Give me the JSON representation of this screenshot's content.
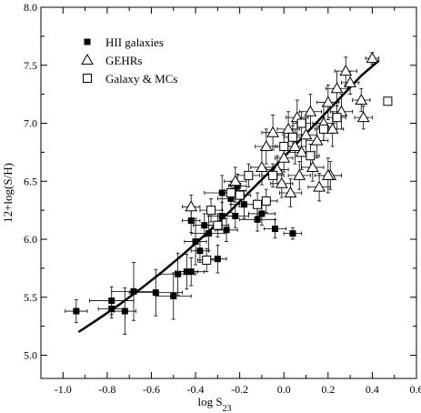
{
  "chart_data": {
    "type": "scatter",
    "title": "",
    "xlabel": "log S",
    "xlabel_sub": "23",
    "ylabel": "12+log(S/H)",
    "xlim": [
      -1.1,
      0.6
    ],
    "ylim": [
      4.8,
      8.0
    ],
    "xticks": [
      "-1.0",
      "-0.8",
      "-0.6",
      "-0.4",
      "-0.2",
      "0.0",
      "0.2",
      "0.4",
      "0.6"
    ],
    "yticks": [
      "5.0",
      "5.5",
      "6.0",
      "6.5",
      "7.0",
      "7.5",
      "8.0"
    ],
    "grid": false,
    "legend_position": "top-left",
    "series": [
      {
        "name": "HII galaxies",
        "marker": "filled-square",
        "color": "#000000",
        "points": [
          {
            "x": -0.94,
            "y": 5.38,
            "xe": 0.05,
            "ye": 0.1
          },
          {
            "x": -0.78,
            "y": 5.47,
            "xe": 0.1,
            "ye": 0.12
          },
          {
            "x": -0.78,
            "y": 5.4,
            "xe": 0.06,
            "ye": 0.08
          },
          {
            "x": -0.72,
            "y": 5.38,
            "xe": 0.05,
            "ye": 0.2
          },
          {
            "x": -0.68,
            "y": 5.55,
            "xe": 0.1,
            "ye": 0.25
          },
          {
            "x": -0.58,
            "y": 5.54,
            "xe": 0.12,
            "ye": 0.2
          },
          {
            "x": -0.5,
            "y": 5.51,
            "xe": 0.08,
            "ye": 0.2
          },
          {
            "x": -0.48,
            "y": 5.7,
            "xe": 0.08,
            "ye": 0.18
          },
          {
            "x": -0.44,
            "y": 5.72,
            "xe": 0.05,
            "ye": 0.15
          },
          {
            "x": -0.42,
            "y": 5.72,
            "xe": 0.06,
            "ye": 0.12
          },
          {
            "x": -0.4,
            "y": 5.98,
            "xe": 0.05,
            "ye": 0.2
          },
          {
            "x": -0.38,
            "y": 5.9,
            "xe": 0.04,
            "ye": 0.1
          },
          {
            "x": -0.42,
            "y": 6.16,
            "xe": 0.04,
            "ye": 0.1
          },
          {
            "x": -0.36,
            "y": 6.12,
            "xe": 0.05,
            "ye": 0.1
          },
          {
            "x": -0.34,
            "y": 6.05,
            "xe": 0.08,
            "ye": 0.15
          },
          {
            "x": -0.3,
            "y": 5.83,
            "xe": 0.04,
            "ye": 0.12
          },
          {
            "x": -0.28,
            "y": 6.2,
            "xe": 0.06,
            "ye": 0.12
          },
          {
            "x": -0.28,
            "y": 6.4,
            "xe": 0.08,
            "ye": 0.15
          },
          {
            "x": -0.26,
            "y": 6.08,
            "xe": 0.05,
            "ye": 0.1
          },
          {
            "x": -0.24,
            "y": 6.35,
            "xe": 0.06,
            "ye": 0.12
          },
          {
            "x": -0.22,
            "y": 6.42,
            "xe": 0.05,
            "ye": 0.1
          },
          {
            "x": -0.21,
            "y": 6.46,
            "xe": 0.04,
            "ye": 0.1
          },
          {
            "x": -0.22,
            "y": 6.2,
            "xe": 0.06,
            "ye": 0.1
          },
          {
            "x": -0.18,
            "y": 6.3,
            "xe": 0.06,
            "ye": 0.12
          },
          {
            "x": -0.12,
            "y": 6.17,
            "xe": 0.08,
            "ye": 0.1
          },
          {
            "x": -0.1,
            "y": 6.22,
            "xe": 0.06,
            "ye": 0.1
          },
          {
            "x": -0.04,
            "y": 6.09,
            "xe": 0.05,
            "ye": 0.08
          },
          {
            "x": 0.04,
            "y": 6.05,
            "xe": 0.04,
            "ye": 0.05
          }
        ]
      },
      {
        "name": "GEHRs",
        "marker": "open-triangle",
        "color": "#000000",
        "points": [
          {
            "x": -0.42,
            "y": 6.28,
            "xe": 0.04,
            "ye": 0.1
          },
          {
            "x": -0.22,
            "y": 6.5,
            "xe": 0.05,
            "ye": 0.12
          },
          {
            "x": -0.1,
            "y": 6.62,
            "xe": 0.05,
            "ye": 0.15
          },
          {
            "x": -0.08,
            "y": 6.8,
            "xe": 0.05,
            "ye": 0.15
          },
          {
            "x": -0.05,
            "y": 6.92,
            "xe": 0.05,
            "ye": 0.15
          },
          {
            "x": -0.03,
            "y": 6.6,
            "xe": 0.05,
            "ye": 0.12
          },
          {
            "x": -0.01,
            "y": 6.48,
            "xe": 0.05,
            "ye": 0.12
          },
          {
            "x": 0.0,
            "y": 6.7,
            "xe": 0.04,
            "ye": 0.12
          },
          {
            "x": 0.02,
            "y": 6.95,
            "xe": 0.05,
            "ye": 0.15
          },
          {
            "x": 0.03,
            "y": 6.4,
            "xe": 0.05,
            "ye": 0.12
          },
          {
            "x": 0.05,
            "y": 6.8,
            "xe": 0.05,
            "ye": 0.15
          },
          {
            "x": 0.06,
            "y": 7.05,
            "xe": 0.05,
            "ye": 0.15
          },
          {
            "x": 0.07,
            "y": 6.55,
            "xe": 0.05,
            "ye": 0.12
          },
          {
            "x": 0.08,
            "y": 6.75,
            "xe": 0.06,
            "ye": 0.15
          },
          {
            "x": 0.1,
            "y": 6.9,
            "xe": 0.05,
            "ye": 0.15
          },
          {
            "x": 0.12,
            "y": 7.1,
            "xe": 0.05,
            "ye": 0.15
          },
          {
            "x": 0.13,
            "y": 6.62,
            "xe": 0.05,
            "ye": 0.12
          },
          {
            "x": 0.15,
            "y": 6.85,
            "xe": 0.05,
            "ye": 0.15
          },
          {
            "x": 0.16,
            "y": 6.45,
            "xe": 0.05,
            "ye": 0.12
          },
          {
            "x": 0.18,
            "y": 7.0,
            "xe": 0.05,
            "ye": 0.15
          },
          {
            "x": 0.2,
            "y": 7.18,
            "xe": 0.05,
            "ye": 0.15
          },
          {
            "x": 0.21,
            "y": 6.55,
            "xe": 0.05,
            "ye": 0.12
          },
          {
            "x": 0.22,
            "y": 6.95,
            "xe": 0.05,
            "ye": 0.15
          },
          {
            "x": 0.24,
            "y": 7.3,
            "xe": 0.05,
            "ye": 0.15
          },
          {
            "x": 0.26,
            "y": 7.1,
            "xe": 0.05,
            "ye": 0.15
          },
          {
            "x": 0.28,
            "y": 7.45,
            "xe": 0.05,
            "ye": 0.12
          },
          {
            "x": 0.3,
            "y": 7.35,
            "xe": 0.04,
            "ye": 0.1
          },
          {
            "x": 0.35,
            "y": 7.2,
            "xe": 0.04,
            "ye": 0.1
          },
          {
            "x": 0.36,
            "y": 7.05,
            "xe": 0.04,
            "ye": 0.1
          },
          {
            "x": 0.4,
            "y": 7.56,
            "xe": 0.03,
            "ye": 0.05
          },
          {
            "x": 0.2,
            "y": 6.55,
            "xe": 0.06,
            "ye": 0.15
          }
        ]
      },
      {
        "name": "Galaxy & MCs",
        "marker": "open-square",
        "color": "#000000",
        "points": [
          {
            "x": -0.35,
            "y": 5.82,
            "xe": 0.04,
            "ye": 0.1
          },
          {
            "x": -0.33,
            "y": 6.25,
            "xe": 0.05,
            "ye": 0.1
          },
          {
            "x": -0.3,
            "y": 6.12,
            "xe": 0.05,
            "ye": 0.1
          },
          {
            "x": -0.24,
            "y": 6.4,
            "xe": 0.05,
            "ye": 0.1
          },
          {
            "x": -0.2,
            "y": 6.38,
            "xe": 0.05,
            "ye": 0.1
          },
          {
            "x": -0.16,
            "y": 6.55,
            "xe": 0.05,
            "ye": 0.1
          },
          {
            "x": -0.12,
            "y": 6.3,
            "xe": 0.05,
            "ye": 0.1
          },
          {
            "x": -0.08,
            "y": 6.33,
            "xe": 0.05,
            "ye": 0.1
          },
          {
            "x": -0.05,
            "y": 6.55,
            "xe": 0.05,
            "ye": 0.1
          },
          {
            "x": 0.0,
            "y": 6.8,
            "xe": 0.04,
            "ye": 0.1
          },
          {
            "x": 0.04,
            "y": 6.88,
            "xe": 0.04,
            "ye": 0.1
          },
          {
            "x": 0.08,
            "y": 7.0,
            "xe": 0.04,
            "ye": 0.1
          },
          {
            "x": 0.12,
            "y": 6.72,
            "xe": 0.04,
            "ye": 0.1
          },
          {
            "x": 0.18,
            "y": 6.95,
            "xe": 0.04,
            "ye": 0.1
          },
          {
            "x": 0.24,
            "y": 7.05,
            "xe": 0.04,
            "ye": 0.1
          },
          {
            "x": 0.47,
            "y": 7.19,
            "xe": 0.0,
            "ye": 0.0
          }
        ]
      }
    ],
    "fit_curve": {
      "description": "polynomial fit",
      "x": [
        -0.93,
        -0.85,
        -0.75,
        -0.65,
        -0.55,
        -0.45,
        -0.35,
        -0.25,
        -0.15,
        -0.05,
        0.05,
        0.15,
        0.25,
        0.35,
        0.43
      ],
      "y": [
        5.2,
        5.3,
        5.43,
        5.57,
        5.72,
        5.88,
        6.05,
        6.23,
        6.42,
        6.61,
        6.81,
        7.01,
        7.21,
        7.41,
        7.54
      ]
    },
    "legend": [
      {
        "label": "HII galaxies",
        "marker": "filled-square"
      },
      {
        "label": "GEHRs",
        "marker": "open-triangle"
      },
      {
        "label": "Galaxy & MCs",
        "marker": "open-square"
      }
    ]
  }
}
